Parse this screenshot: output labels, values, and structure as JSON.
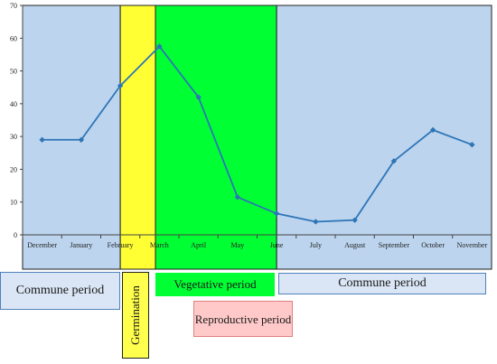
{
  "chart_data": {
    "type": "line",
    "categories": [
      "December",
      "January",
      "February",
      "March",
      "April",
      "May",
      "June",
      "July",
      "August",
      "September",
      "October",
      "November"
    ],
    "values": [
      29,
      29,
      45.5,
      57.5,
      42,
      11.5,
      6.5,
      4,
      4.5,
      22.5,
      32,
      27.5
    ],
    "ylim": [
      0,
      70
    ],
    "yticks": [
      0,
      10,
      20,
      30,
      40,
      50,
      60,
      70
    ],
    "grid": false,
    "legend": "none",
    "line_color": "#2e75b6",
    "periods": [
      {
        "label": "Commune period",
        "from": -0.5,
        "to": 2.0,
        "color": "#bcd4ee"
      },
      {
        "label": "Germination",
        "from": 2.0,
        "to": 2.9,
        "color": "#ffff33"
      },
      {
        "label": "Vegetative period",
        "from": 2.9,
        "to": 6.0,
        "color": "#00ff33"
      },
      {
        "label": "Commune period",
        "from": 6.0,
        "to": 11.5,
        "color": "#bcd4ee"
      }
    ]
  },
  "labels": {
    "commune_left": "Commune period",
    "germination": "Germination",
    "vegetative": "Vegetative period",
    "commune_right": "Commune period",
    "reproductive": "Reproductive period"
  },
  "colors": {
    "commune": "#bcd4ee",
    "germination": "#ffff33",
    "vegetative": "#00ff33",
    "reproductive": "#ffc9c9",
    "border": "#4f81bd"
  }
}
